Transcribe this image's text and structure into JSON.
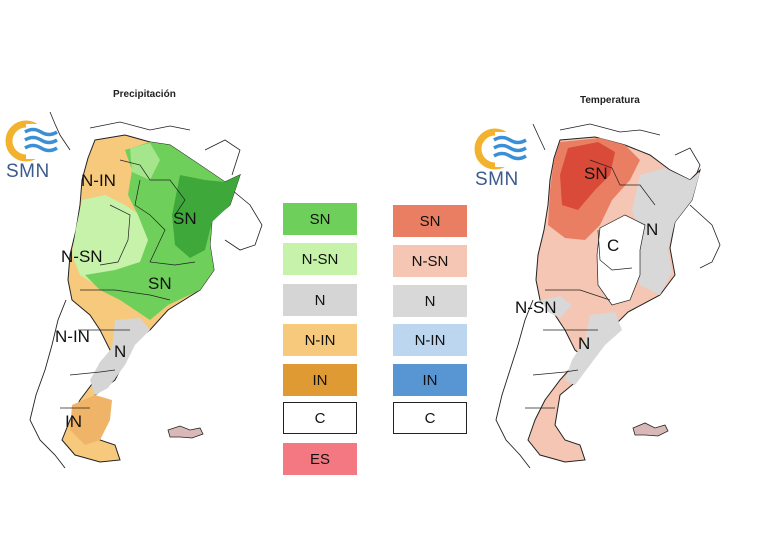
{
  "precipitation": {
    "title": "Precipitación",
    "logo_text": "SMN",
    "map_labels": [
      "N-IN",
      "SN",
      "N-SN",
      "SN",
      "N-IN",
      "N",
      "IN"
    ],
    "legend": [
      {
        "label": "SN",
        "color": "#6fcf5b"
      },
      {
        "label": "N-SN",
        "color": "#c6f2a9"
      },
      {
        "label": "N",
        "color": "#d5d5d5"
      },
      {
        "label": "N-IN",
        "color": "#f6c97c"
      },
      {
        "label": "IN",
        "color": "#e09a34"
      },
      {
        "label": "C",
        "color": "#ffffff"
      },
      {
        "label": "ES",
        "color": "#f47882"
      }
    ]
  },
  "temperature": {
    "title": "Temperatura",
    "logo_text": "SMN",
    "map_labels": [
      "SN",
      "C",
      "N",
      "N-SN",
      "N"
    ],
    "legend": [
      {
        "label": "SN",
        "color": "#e97e63"
      },
      {
        "label": "N-SN",
        "color": "#f4c6b3"
      },
      {
        "label": "N",
        "color": "#d8d8d8"
      },
      {
        "label": "N-IN",
        "color": "#bcd6ef"
      },
      {
        "label": "IN",
        "color": "#5896d3"
      },
      {
        "label": "C",
        "color": "#ffffff"
      }
    ]
  },
  "colors": {
    "logo_sun": "#f3b22d",
    "logo_waves": "#3a8fd6",
    "map_border": "#222222",
    "precip_green_dark": "#3ea93a",
    "temp_red_dark": "#d94a39"
  }
}
